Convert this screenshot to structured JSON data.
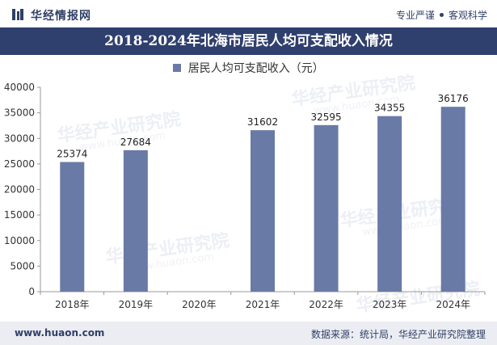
{
  "header": {
    "brand": "华经情报网",
    "tag1": "专业严谨",
    "tag2": "客观科学"
  },
  "watermark": {
    "text": "华经产业研究院",
    "url": "www.huaon.com"
  },
  "footer": {
    "website": "www.huaon.com",
    "source": "数据来源：统计局，华经产业研究院整理"
  },
  "colors": {
    "bar": "#6a7aa6",
    "title_bg": "#2f3f6e",
    "footer_bg": "#ebedf2"
  },
  "chart_data": {
    "type": "bar",
    "title": "2018-2024年北海市居民人均可支配收入情况",
    "categories": [
      "2018年",
      "2019年",
      "2020年",
      "2021年",
      "2022年",
      "2023年",
      "2024年"
    ],
    "series": [
      {
        "name": "居民人均可支配收入（元）",
        "values": [
          25374,
          27684,
          null,
          31602,
          32595,
          34355,
          36176
        ]
      }
    ],
    "ylim": [
      0,
      40000
    ],
    "yticks": [
      0,
      5000,
      10000,
      15000,
      20000,
      25000,
      30000,
      35000,
      40000
    ],
    "grid": false,
    "legend": "top-center",
    "data_labels": true
  }
}
